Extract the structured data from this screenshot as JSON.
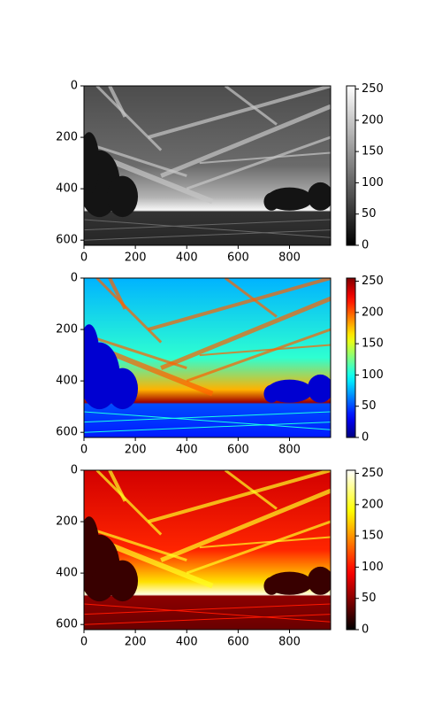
{
  "chart_data": [
    {
      "type": "image",
      "colormap": "gray",
      "xlim": [
        0,
        960
      ],
      "ylim": [
        620,
        0
      ],
      "xticks": [
        0,
        200,
        400,
        600,
        800
      ],
      "yticks": [
        0,
        200,
        400,
        600
      ],
      "clim": [
        0,
        255
      ],
      "cticks": [
        0,
        50,
        100,
        150,
        200,
        250
      ]
    },
    {
      "type": "image",
      "colormap": "jet",
      "xlim": [
        0,
        960
      ],
      "ylim": [
        620,
        0
      ],
      "xticks": [
        0,
        200,
        400,
        600,
        800
      ],
      "yticks": [
        0,
        200,
        400,
        600
      ],
      "clim": [
        0,
        255
      ],
      "cticks": [
        0,
        50,
        100,
        150,
        200,
        250
      ]
    },
    {
      "type": "image",
      "colormap": "hot",
      "xlim": [
        0,
        960
      ],
      "ylim": [
        620,
        0
      ],
      "xticks": [
        0,
        200,
        400,
        600,
        800
      ],
      "yticks": [
        0,
        200,
        400,
        600
      ],
      "clim": [
        0,
        255
      ],
      "cticks": [
        0,
        50,
        100,
        150,
        200,
        250
      ]
    }
  ]
}
